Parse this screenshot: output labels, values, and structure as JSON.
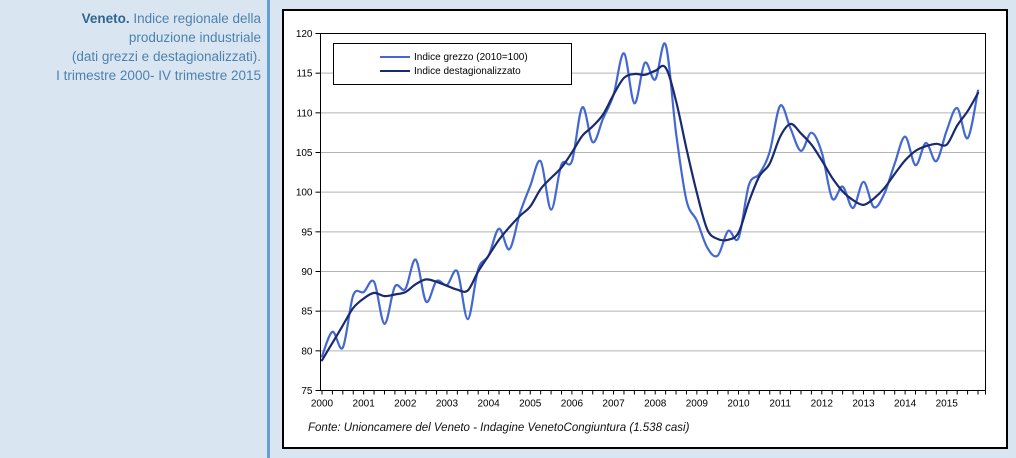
{
  "sidebar": {
    "line1_bold": "Veneto.",
    "line1_rest": " Indice regionale della",
    "line2": "produzione industriale",
    "line3": "(dati grezzi e destagionalizzati).",
    "line4": "I trimestre 2000- IV trimestre 2015"
  },
  "chart_data": {
    "type": "line",
    "title": "Veneto. Indice regionale della produzione industriale (dati grezzi e destagionalizzati). I trimestre 2000- IV trimestre 2015",
    "source": "Fonte: Unioncamere del Veneto - Indagine VenetoCongiuntura (1.538 casi)",
    "x_years": [
      2000,
      2001,
      2002,
      2003,
      2004,
      2005,
      2006,
      2007,
      2008,
      2009,
      2010,
      2011,
      2012,
      2013,
      2014,
      2015
    ],
    "quarters_per_year": 4,
    "ylim": [
      75,
      120
    ],
    "ytick_step": 5,
    "grid": true,
    "legend_position": "top-left",
    "frame_color": "#000000",
    "grid_color": "#b3b3b3",
    "series": [
      {
        "name": "Indice grezzo (2010=100)",
        "color": "#4468d2",
        "values": [
          79.3,
          82.4,
          80.4,
          87.0,
          87.4,
          88.7,
          83.4,
          88.1,
          87.8,
          91.5,
          86.2,
          88.8,
          88.3,
          90.0,
          84.0,
          90.3,
          92.0,
          95.4,
          92.8,
          97.3,
          100.8,
          103.9,
          97.8,
          103.5,
          103.9,
          110.7,
          106.3,
          109.3,
          112.3,
          117.5,
          111.2,
          116.3,
          114.2,
          118.6,
          107.5,
          99.0,
          96.4,
          93.0,
          92.0,
          95.1,
          94.2,
          100.9,
          102.3,
          105.1,
          110.9,
          108.0,
          105.2,
          107.5,
          105.0,
          99.2,
          100.7,
          98.0,
          101.3,
          98.1,
          99.8,
          103.6,
          107.0,
          103.4,
          106.2,
          103.9,
          107.8,
          110.6,
          106.8,
          112.8
        ]
      },
      {
        "name": "Indice destagionalizzato",
        "color": "#1a2a70",
        "values": [
          78.8,
          81.0,
          83.2,
          85.4,
          86.6,
          87.3,
          86.9,
          87.1,
          87.4,
          88.4,
          89.0,
          88.7,
          88.2,
          87.7,
          87.6,
          90.0,
          92.0,
          94.0,
          95.6,
          97.0,
          98.2,
          100.4,
          101.8,
          103.1,
          105.0,
          107.1,
          108.3,
          109.8,
          112.3,
          114.4,
          114.9,
          114.8,
          115.3,
          115.7,
          111.5,
          105.5,
          99.9,
          95.3,
          94.1,
          94.0,
          94.9,
          98.8,
          102.0,
          103.6,
          107.0,
          108.6,
          107.4,
          106.0,
          104.0,
          101.8,
          100.1,
          99.0,
          98.4,
          99.2,
          100.5,
          102.3,
          104.0,
          105.2,
          105.8,
          106.1,
          106.0,
          108.4,
          110.2,
          112.5
        ]
      }
    ]
  }
}
